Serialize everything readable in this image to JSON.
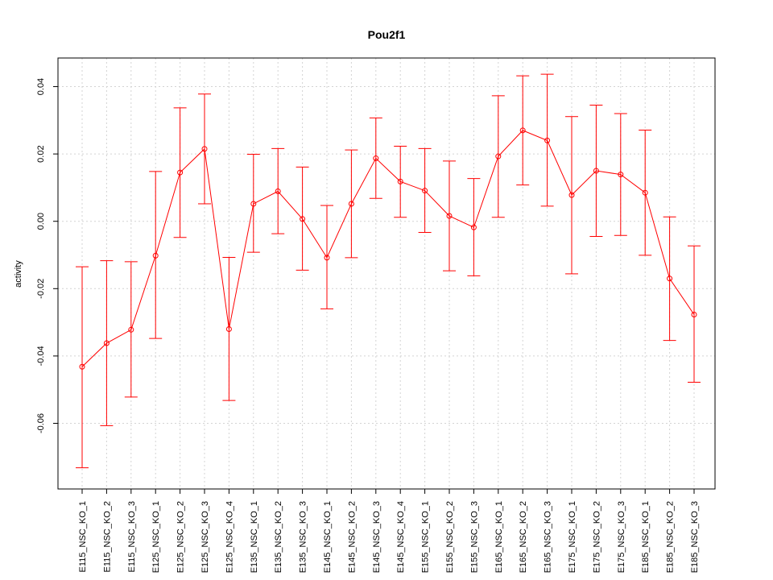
{
  "chart_data": {
    "type": "line",
    "title": "Pou2f1",
    "xlabel": "",
    "ylabel": "activity",
    "ylim": [
      -0.0795,
      0.0485
    ],
    "yticks": [
      -0.06,
      -0.04,
      -0.02,
      0.0,
      0.02,
      0.04
    ],
    "ytick_labels": [
      "-0.06",
      "-0.04",
      "-0.02",
      "0.00",
      "0.02",
      "0.04"
    ],
    "grid": true,
    "color": "#ff0000",
    "categories": [
      "E115_NSC_KO_1",
      "E115_NSC_KO_2",
      "E115_NSC_KO_3",
      "E125_NSC_KO_1",
      "E125_NSC_KO_2",
      "E125_NSC_KO_3",
      "E125_NSC_KO_4",
      "E135_NSC_KO_1",
      "E135_NSC_KO_2",
      "E135_NSC_KO_3",
      "E145_NSC_KO_1",
      "E145_NSC_KO_2",
      "E145_NSC_KO_3",
      "E145_NSC_KO_4",
      "E155_NSC_KO_1",
      "E155_NSC_KO_2",
      "E155_NSC_KO_3",
      "E165_NSC_KO_1",
      "E165_NSC_KO_2",
      "E165_NSC_KO_3",
      "E175_NSC_KO_1",
      "E175_NSC_KO_2",
      "E175_NSC_KO_3",
      "E185_NSC_KO_1",
      "E185_NSC_KO_2",
      "E185_NSC_KO_3"
    ],
    "values": [
      -0.0432,
      -0.0362,
      -0.0322,
      -0.0102,
      0.0145,
      0.0215,
      -0.032,
      0.0052,
      0.0089,
      0.0007,
      -0.0108,
      0.0052,
      0.0187,
      0.0118,
      0.0091,
      0.0016,
      -0.0018,
      0.0193,
      0.027,
      0.024,
      0.0078,
      0.015,
      0.0139,
      0.0085,
      -0.017,
      -0.0277
    ],
    "upper": [
      -0.0135,
      -0.0117,
      -0.012,
      0.0148,
      0.0337,
      0.0378,
      -0.0107,
      0.0199,
      0.0216,
      0.0161,
      0.0047,
      0.0212,
      0.0307,
      0.0223,
      0.0216,
      0.0179,
      0.0127,
      0.0373,
      0.0432,
      0.0437,
      0.0311,
      0.0345,
      0.032,
      0.0271,
      0.0013,
      -0.0073
    ],
    "lower": [
      -0.0732,
      -0.0607,
      -0.0522,
      -0.0348,
      -0.0048,
      0.0052,
      -0.0532,
      -0.0092,
      -0.0037,
      -0.0145,
      -0.026,
      -0.0108,
      0.0068,
      0.0012,
      -0.0033,
      -0.0147,
      -0.0162,
      0.0012,
      0.0108,
      0.0045,
      -0.0156,
      -0.0045,
      -0.0042,
      -0.0101,
      -0.0354,
      -0.0478
    ]
  }
}
